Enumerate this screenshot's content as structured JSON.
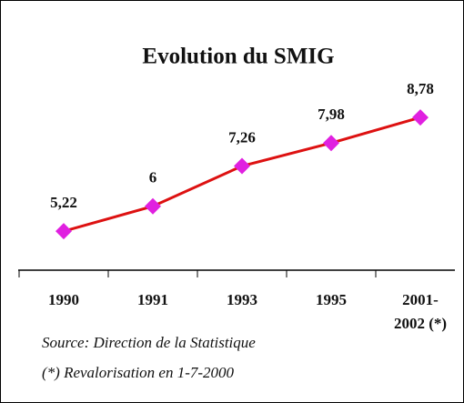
{
  "chart_data": {
    "type": "line",
    "title": "Evolution du SMIG",
    "categories": [
      "1990",
      "1991",
      "1993",
      "1995",
      "2001-2002 (*)"
    ],
    "values": [
      5.22,
      6,
      7.26,
      7.98,
      8.78
    ],
    "value_labels": [
      "5,22",
      "6",
      "7,26",
      "7,98",
      "8,78"
    ],
    "color": "#dd1111",
    "marker_color": "#e020e0",
    "ylim": [
      4,
      12
    ],
    "source": "Source: Direction de la Statistique",
    "note": "(*) Revalorisation en 1-7-2000"
  }
}
